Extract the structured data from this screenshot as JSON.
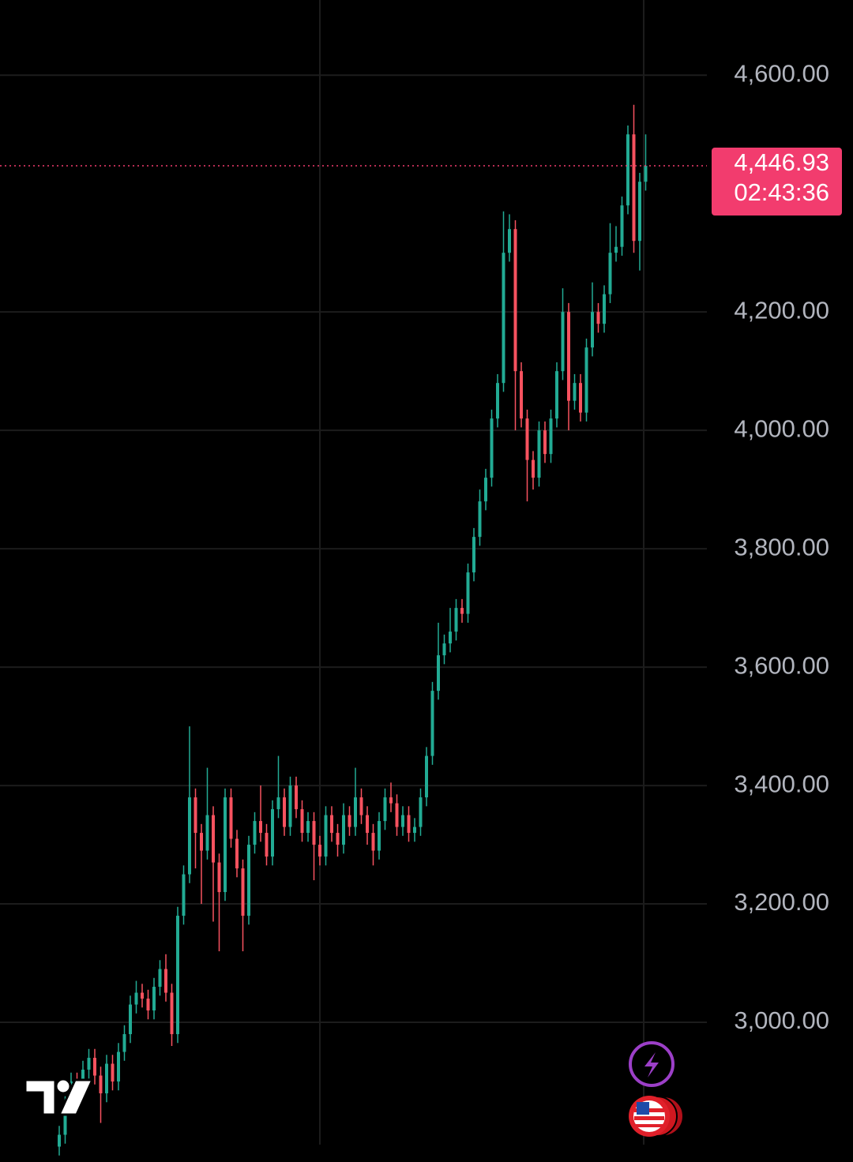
{
  "chart_data": {
    "type": "candlestick",
    "ylim": [
      2764,
      4727
    ],
    "yticks": [
      {
        "value": 3000,
        "label": "3,000.00"
      },
      {
        "value": 3200,
        "label": "3,200.00"
      },
      {
        "value": 3400,
        "label": "3,400.00"
      },
      {
        "value": 3600,
        "label": "3,600.00"
      },
      {
        "value": 3800,
        "label": "3,800.00"
      },
      {
        "value": 4000,
        "label": "4,000.00"
      },
      {
        "value": 4200,
        "label": "4,200.00"
      },
      {
        "value": 4600,
        "label": "4,600.00"
      }
    ],
    "grid": true,
    "up_color": "#22ab94",
    "down_color": "#f7525f",
    "label_color": "#f23c6e",
    "last_price": {
      "value": 4446.93,
      "label": "4,446.93"
    },
    "countdown": "02:43:36",
    "open": [
      2790,
      2810,
      2860,
      2900,
      2880,
      2920,
      2940,
      2910,
      2880,
      2930,
      2900,
      2950,
      2980,
      3030,
      3050,
      3040,
      3020,
      3060,
      3090,
      3050,
      2980,
      3180,
      3250,
      3380,
      3320,
      3290,
      3350,
      3270,
      3220,
      3380,
      3310,
      3260,
      3180,
      3300,
      3340,
      3320,
      3280,
      3360,
      3380,
      3330,
      3400,
      3360,
      3320,
      3340,
      3300,
      3280,
      3350,
      3320,
      3300,
      3350,
      3330,
      3380,
      3350,
      3320,
      3290,
      3340,
      3380,
      3370,
      3330,
      3350,
      3320,
      3330,
      3380,
      3450,
      3560,
      3620,
      3640,
      3660,
      3700,
      3690,
      3760,
      3820,
      3880,
      3920,
      4020,
      4080,
      4300,
      4340,
      4100,
      4020,
      3950,
      3920,
      4000,
      3960,
      4020,
      4100,
      4200,
      4050,
      4080,
      4030,
      4140,
      4200,
      4180,
      4230,
      4300,
      4310,
      4380,
      4500,
      4320,
      4420
    ],
    "high": [
      2825,
      2875,
      2915,
      2915,
      2935,
      2955,
      2955,
      2925,
      2945,
      2945,
      2965,
      2995,
      3045,
      3070,
      3065,
      3055,
      3075,
      3105,
      3115,
      3065,
      3195,
      3265,
      3500,
      3395,
      3335,
      3430,
      3365,
      3285,
      3395,
      3395,
      3325,
      3275,
      3315,
      3355,
      3400,
      3335,
      3375,
      3450,
      3395,
      3415,
      3415,
      3375,
      3355,
      3355,
      3315,
      3365,
      3365,
      3335,
      3370,
      3365,
      3430,
      3395,
      3365,
      3335,
      3355,
      3395,
      3405,
      3385,
      3365,
      3365,
      3345,
      3395,
      3465,
      3575,
      3675,
      3655,
      3700,
      3715,
      3715,
      3775,
      3835,
      3900,
      3935,
      4035,
      4095,
      4370,
      4365,
      4355,
      4115,
      4035,
      3965,
      4015,
      4015,
      4035,
      4115,
      4240,
      4215,
      4095,
      4095,
      4155,
      4250,
      4215,
      4245,
      4350,
      4345,
      4395,
      4515,
      4550,
      4435,
      4500
    ],
    "low": [
      2775,
      2795,
      2845,
      2865,
      2865,
      2905,
      2895,
      2830,
      2865,
      2885,
      2885,
      2935,
      2965,
      3015,
      3025,
      3005,
      3005,
      3045,
      3035,
      2960,
      2965,
      3165,
      3235,
      3260,
      3200,
      3275,
      3170,
      3120,
      3205,
      3295,
      3245,
      3120,
      3165,
      3285,
      3305,
      3265,
      3265,
      3345,
      3315,
      3315,
      3345,
      3305,
      3305,
      3240,
      3265,
      3265,
      3305,
      3280,
      3285,
      3315,
      3315,
      3335,
      3300,
      3265,
      3275,
      3325,
      3355,
      3315,
      3315,
      3305,
      3305,
      3315,
      3365,
      3435,
      3545,
      3605,
      3625,
      3645,
      3675,
      3675,
      3745,
      3805,
      3865,
      3905,
      4005,
      4065,
      4285,
      4000,
      4005,
      3880,
      3900,
      3905,
      3945,
      3945,
      4005,
      4085,
      4000,
      4035,
      4015,
      4015,
      4125,
      4165,
      4165,
      4215,
      4285,
      4295,
      4365,
      4300,
      4270,
      4405
    ],
    "close": [
      2810,
      2860,
      2900,
      2880,
      2920,
      2940,
      2910,
      2880,
      2930,
      2900,
      2950,
      2980,
      3030,
      3050,
      3040,
      3020,
      3060,
      3090,
      3050,
      2980,
      3180,
      3250,
      3380,
      3320,
      3290,
      3350,
      3270,
      3220,
      3380,
      3310,
      3260,
      3180,
      3300,
      3340,
      3320,
      3280,
      3360,
      3380,
      3330,
      3400,
      3360,
      3320,
      3340,
      3300,
      3280,
      3350,
      3320,
      3300,
      3350,
      3330,
      3380,
      3350,
      3320,
      3290,
      3340,
      3380,
      3370,
      3330,
      3350,
      3320,
      3330,
      3380,
      3450,
      3560,
      3620,
      3640,
      3660,
      3700,
      3690,
      3760,
      3820,
      3880,
      3920,
      4020,
      4080,
      4300,
      4340,
      4100,
      4020,
      3950,
      3920,
      4000,
      3960,
      4020,
      4100,
      4200,
      4050,
      4080,
      4030,
      4140,
      4200,
      4180,
      4230,
      4300,
      4310,
      4380,
      4500,
      4320,
      4420,
      4446.93
    ]
  }
}
